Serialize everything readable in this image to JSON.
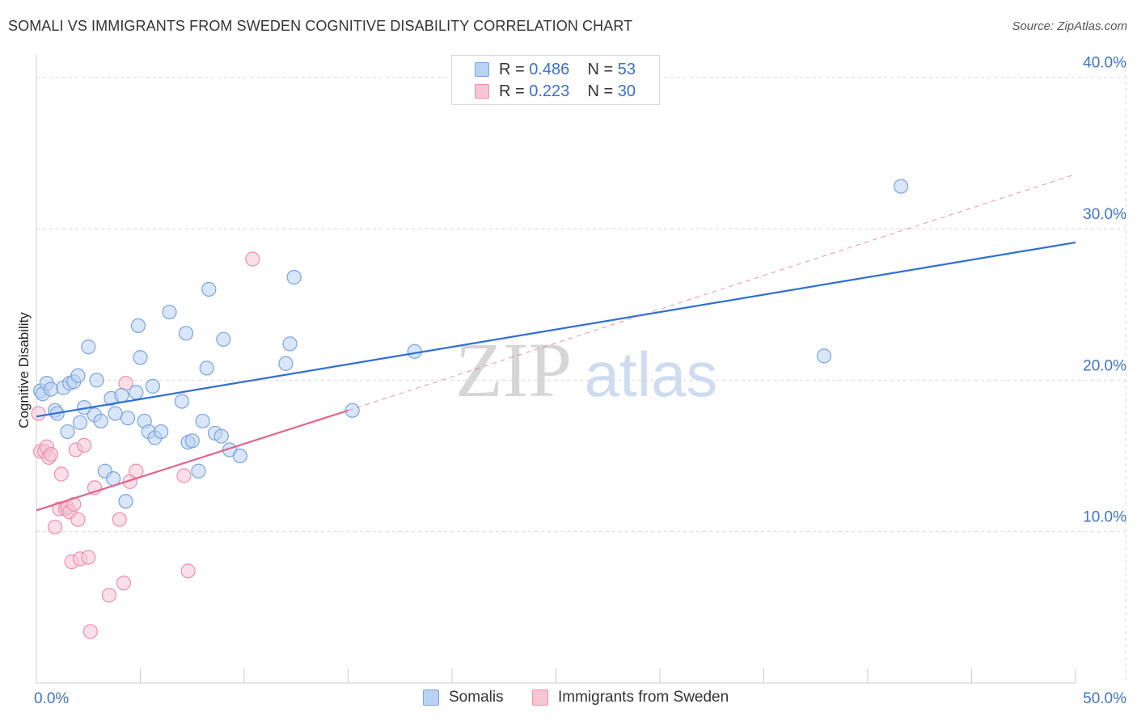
{
  "title": "SOMALI VS IMMIGRANTS FROM SWEDEN COGNITIVE DISABILITY CORRELATION CHART",
  "source": "Source: ZipAtlas.com",
  "watermark": {
    "zip": "ZIP",
    "atlas": "atlas"
  },
  "colors": {
    "blue_fill": "#b9d2f3",
    "blue_stroke": "#7aa3de",
    "blue_line": "#2f6fd0",
    "pink_fill": "#f8c5d5",
    "pink_stroke": "#ee8fae",
    "pink_line": "#e0658f",
    "grid": "#d9d9d9",
    "tick_text": "#3f73c4"
  },
  "legend_top": [
    {
      "r_label": "R = ",
      "r_value": "0.486",
      "n_label": "N = ",
      "n_value": "53"
    },
    {
      "r_label": "R = ",
      "r_value": "0.223",
      "n_label": "N = ",
      "n_value": "30"
    }
  ],
  "legend_bottom": [
    "Somalis",
    "Immigrants from Sweden"
  ],
  "chart_data": {
    "type": "scatter",
    "title": "SOMALI VS IMMIGRANTS FROM SWEDEN COGNITIVE DISABILITY CORRELATION CHART",
    "xlabel": "",
    "ylabel": "Cognitive Disability",
    "xlim": [
      0,
      50
    ],
    "ylim": [
      0,
      41
    ],
    "x_tick_labels": [
      {
        "value": 0,
        "label": "0.0%"
      },
      {
        "value": 50,
        "label": "50.0%"
      }
    ],
    "y_tick_labels": [
      {
        "value": 10,
        "label": "10.0%"
      },
      {
        "value": 20,
        "label": "20.0%"
      },
      {
        "value": 30,
        "label": "30.0%"
      },
      {
        "value": 40,
        "label": "40.0%"
      }
    ],
    "grid": true,
    "legend_position": "top-center",
    "series": [
      {
        "name": "Somalis",
        "r": 0.486,
        "n": 53,
        "trend": {
          "x0": 0,
          "y0": 17.6,
          "x1": 50,
          "y1": 29.1
        },
        "points": [
          [
            0.2,
            19.3
          ],
          [
            0.3,
            19.1
          ],
          [
            0.5,
            19.8
          ],
          [
            0.7,
            19.4
          ],
          [
            0.9,
            18.0
          ],
          [
            1.0,
            17.8
          ],
          [
            1.3,
            19.5
          ],
          [
            1.5,
            16.6
          ],
          [
            1.6,
            19.8
          ],
          [
            1.8,
            19.9
          ],
          [
            2.0,
            20.3
          ],
          [
            2.1,
            17.2
          ],
          [
            2.3,
            18.2
          ],
          [
            2.5,
            22.2
          ],
          [
            2.8,
            17.7
          ],
          [
            2.9,
            20.0
          ],
          [
            3.1,
            17.3
          ],
          [
            3.3,
            14.0
          ],
          [
            3.6,
            18.8
          ],
          [
            3.7,
            13.5
          ],
          [
            3.8,
            17.8
          ],
          [
            4.1,
            19.0
          ],
          [
            4.3,
            12.0
          ],
          [
            4.4,
            17.5
          ],
          [
            4.8,
            19.2
          ],
          [
            4.9,
            23.6
          ],
          [
            5.0,
            21.5
          ],
          [
            5.2,
            17.3
          ],
          [
            5.4,
            16.6
          ],
          [
            5.6,
            19.6
          ],
          [
            5.7,
            16.2
          ],
          [
            6.0,
            16.6
          ],
          [
            6.4,
            24.5
          ],
          [
            7.0,
            18.6
          ],
          [
            7.2,
            23.1
          ],
          [
            7.3,
            15.9
          ],
          [
            7.5,
            16.0
          ],
          [
            7.8,
            14.0
          ],
          [
            8.0,
            17.3
          ],
          [
            8.2,
            20.8
          ],
          [
            8.3,
            26.0
          ],
          [
            8.6,
            16.5
          ],
          [
            8.9,
            16.3
          ],
          [
            9.0,
            22.7
          ],
          [
            9.3,
            15.4
          ],
          [
            9.8,
            15.0
          ],
          [
            12.0,
            21.1
          ],
          [
            12.2,
            22.4
          ],
          [
            12.4,
            26.8
          ],
          [
            15.2,
            18.0
          ],
          [
            18.2,
            21.9
          ],
          [
            37.9,
            21.6
          ],
          [
            41.6,
            32.8
          ]
        ]
      },
      {
        "name": "Immigrants from Sweden",
        "r": 0.223,
        "n": 30,
        "trend": {
          "x0": 0,
          "y0": 11.4,
          "x1": 15,
          "y1": 18.0,
          "dashed_to": {
            "x": 50,
            "y": 33.6
          }
        },
        "points": [
          [
            0.1,
            17.8
          ],
          [
            0.2,
            15.3
          ],
          [
            0.4,
            15.3
          ],
          [
            0.5,
            15.6
          ],
          [
            0.6,
            14.9
          ],
          [
            0.7,
            15.1
          ],
          [
            0.9,
            10.3
          ],
          [
            1.1,
            11.5
          ],
          [
            1.2,
            13.8
          ],
          [
            1.4,
            11.5
          ],
          [
            1.5,
            11.6
          ],
          [
            1.6,
            11.3
          ],
          [
            1.7,
            8.0
          ],
          [
            1.8,
            11.8
          ],
          [
            1.9,
            15.4
          ],
          [
            2.0,
            10.8
          ],
          [
            2.1,
            8.2
          ],
          [
            2.3,
            15.7
          ],
          [
            2.5,
            8.3
          ],
          [
            2.6,
            3.4
          ],
          [
            2.8,
            12.9
          ],
          [
            3.5,
            5.8
          ],
          [
            4.0,
            10.8
          ],
          [
            4.2,
            6.6
          ],
          [
            4.3,
            19.8
          ],
          [
            4.5,
            13.3
          ],
          [
            4.8,
            14.0
          ],
          [
            7.1,
            13.7
          ],
          [
            7.3,
            7.4
          ],
          [
            10.4,
            28.0
          ]
        ]
      }
    ]
  }
}
